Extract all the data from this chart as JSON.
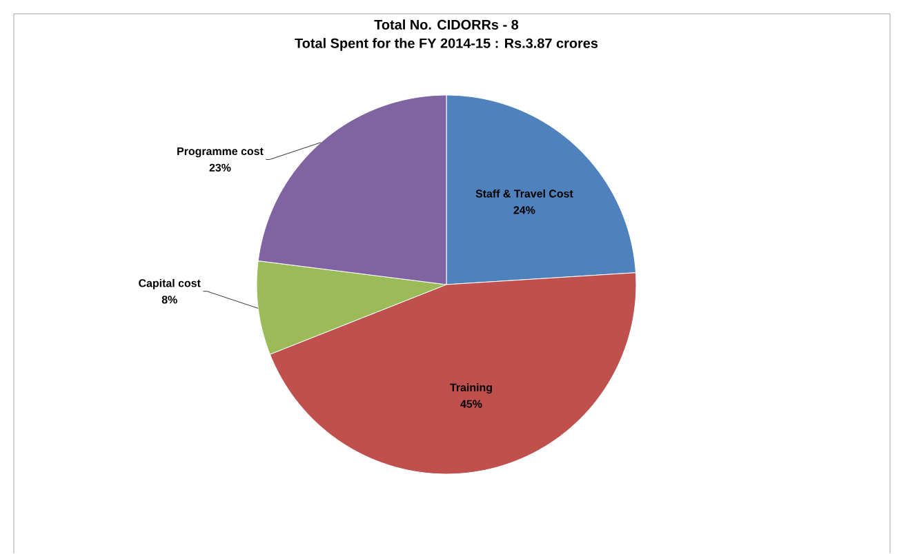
{
  "chart_data": {
    "type": "pie",
    "title": "Total No. CIDORRs - 8",
    "subtitle": "Total Spent  for the FY 2014-15 : Rs.3.87 crores",
    "categories": [
      "Staff & Travel  Cost",
      "Training",
      "Capital cost",
      "Programme cost"
    ],
    "values": [
      24,
      45,
      8,
      23
    ],
    "value_labels": [
      "24%",
      "45%",
      "8%",
      "23%"
    ],
    "colors": [
      "#4f81bd",
      "#c0504d",
      "#9bbb59",
      "#8064a2"
    ]
  }
}
